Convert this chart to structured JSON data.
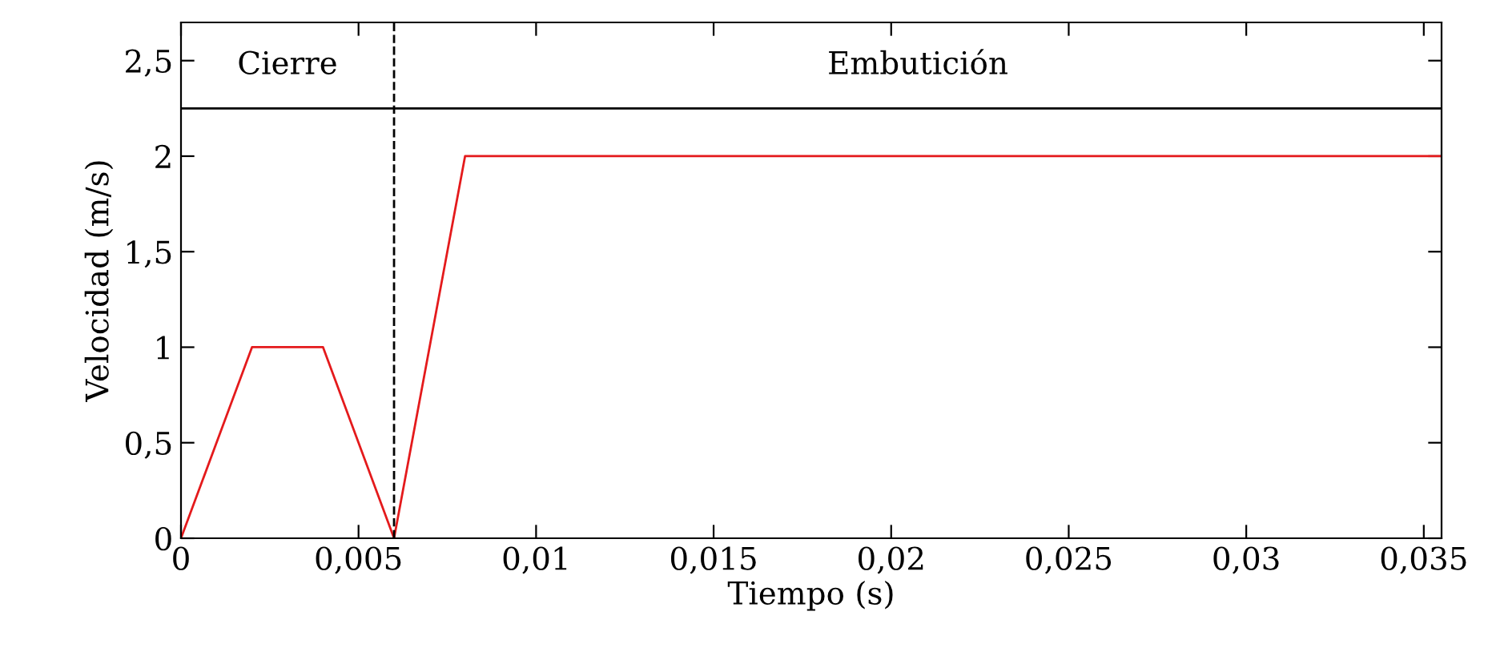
{
  "chart_data": {
    "type": "line",
    "xlabel": "Tiempo (s)",
    "ylabel": "Velocidad (m/s)",
    "series": [
      {
        "color": "#e41a1c",
        "x": [
          0,
          0.002,
          0.004,
          0.006,
          0.008,
          0.0355
        ],
        "values": [
          0,
          1,
          1,
          0,
          2,
          2
        ]
      }
    ],
    "xlim": [
      0,
      0.0355
    ],
    "ylim": [
      0,
      2.7
    ],
    "xticks": [
      0,
      {
        "value": 0.005,
        "label": "0,005"
      },
      {
        "value": 0.01,
        "label": "0,01"
      },
      {
        "value": 0.015,
        "label": "0,015"
      },
      {
        "value": 0.02,
        "label": "0,02"
      },
      {
        "value": 0.025,
        "label": "0,025"
      },
      {
        "value": 0.03,
        "label": "0,03"
      },
      {
        "value": 0.035,
        "label": "0,035"
      }
    ],
    "yticks": [
      0,
      {
        "value": 0.5,
        "label": "0,5"
      },
      1,
      {
        "value": 1.5,
        "label": "1,5"
      },
      2,
      {
        "value": 2.5,
        "label": "2,5"
      }
    ],
    "ref_lines": [
      {
        "axis": "x",
        "value": 0.006,
        "color": "#000000",
        "line_style": "dashed"
      },
      {
        "axis": "y",
        "value": 2.25,
        "color": "#000000",
        "line_style": "solid"
      }
    ],
    "annotations": [
      "Cierre",
      "Embutición"
    ],
    "grid": false,
    "legend": false,
    "marker": "none",
    "line_style": "solid"
  }
}
